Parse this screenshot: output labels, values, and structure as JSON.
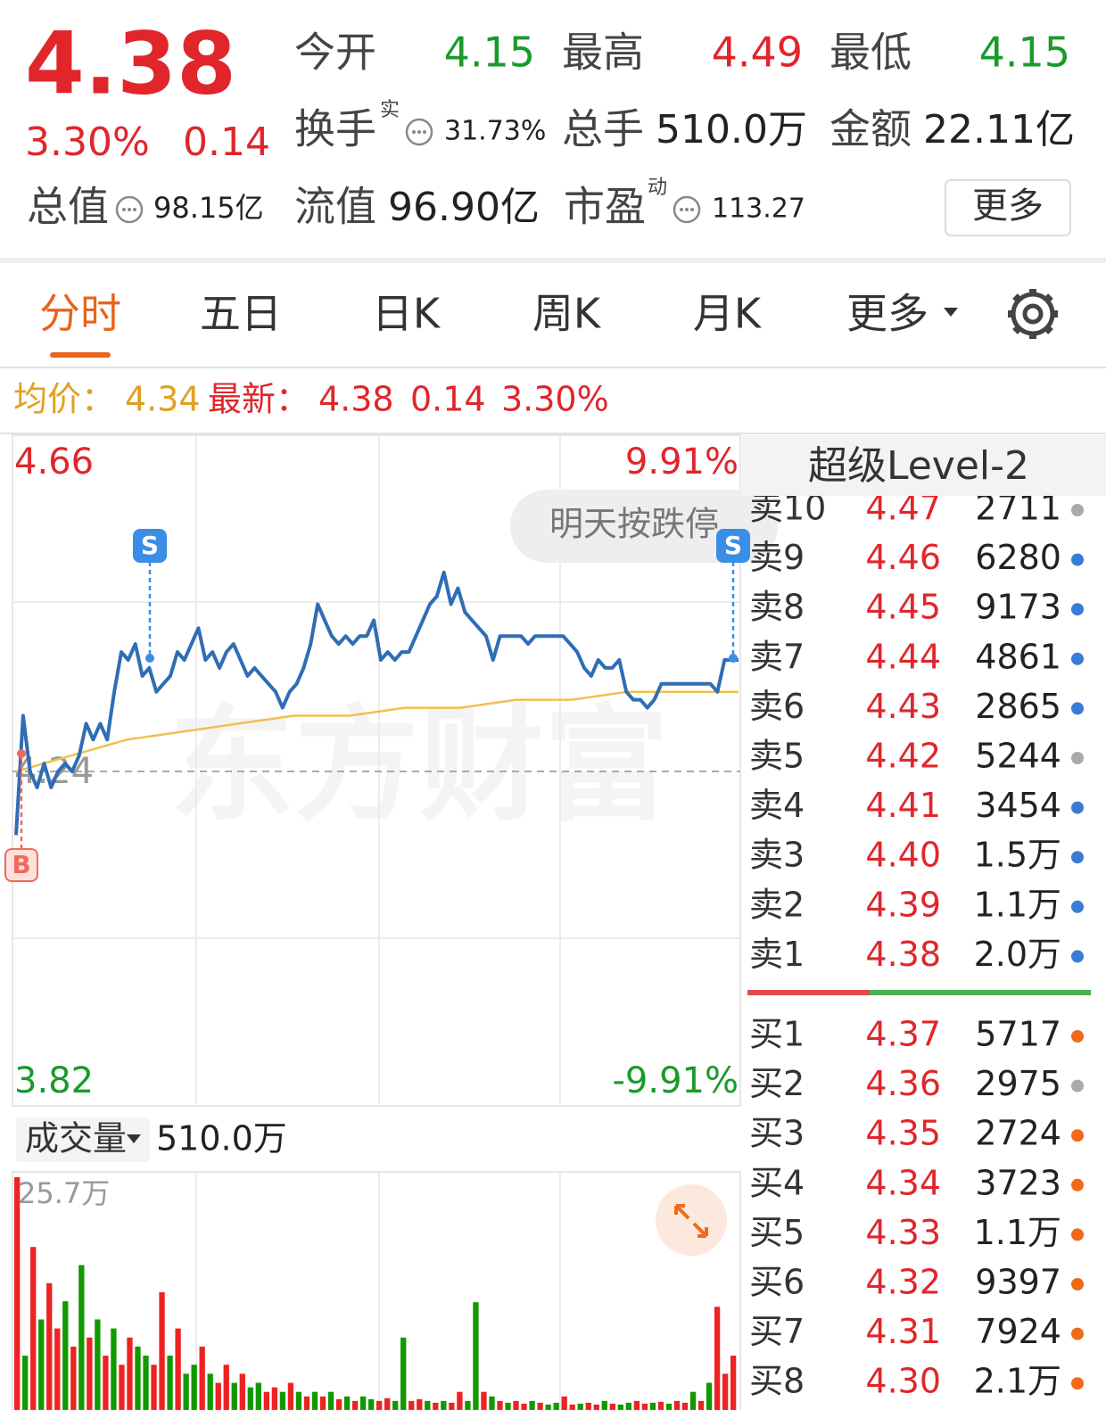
{
  "quote": {
    "price": "4.38",
    "change_pct": "3.30%",
    "change": "0.14",
    "stats": [
      {
        "label": "今开",
        "value": "4.15",
        "color": "#1a9a2a"
      },
      {
        "label": "最高",
        "value": "4.49",
        "color": "#e0262b"
      },
      {
        "label": "最低",
        "value": "4.15",
        "color": "#1a9a2a"
      },
      {
        "label": "换手",
        "sup": "实",
        "value": "31.73%",
        "color": "#222222"
      },
      {
        "label": "总手",
        "value": "510.0万",
        "color": "#222222"
      },
      {
        "label": "金额",
        "value": "22.11亿",
        "color": "#222222"
      },
      {
        "label": "总值",
        "value": "98.15亿",
        "color": "#222222"
      },
      {
        "label": "流值",
        "value": "96.90亿",
        "color": "#222222"
      },
      {
        "label": "市盈",
        "sup": "动",
        "value": "113.27",
        "color": "#222222"
      }
    ],
    "more": "更多"
  },
  "tabs": {
    "items": [
      "分时",
      "五日",
      "日K",
      "周K",
      "月K",
      "更多"
    ],
    "active": 0
  },
  "summary": {
    "avg_label": "均价：",
    "avg": "4.34",
    "last_label": "最新：",
    "last": "4.38",
    "change": "0.14",
    "change_pct": "3.30%"
  },
  "chart": {
    "type": "line",
    "ylim": [
      3.82,
      4.66
    ],
    "yticks": [
      4.66,
      4.24,
      3.82
    ],
    "pct_labels": [
      "9.91%",
      "-9.91%"
    ],
    "price": {
      "color": "#2f6db5",
      "values": [
        4.16,
        4.31,
        4.24,
        4.22,
        4.25,
        4.22,
        4.24,
        4.25,
        4.24,
        4.26,
        4.3,
        4.28,
        4.3,
        4.28,
        4.34,
        4.39,
        4.38,
        4.4,
        4.36,
        4.37,
        4.34,
        4.35,
        4.36,
        4.39,
        4.38,
        4.4,
        4.42,
        4.38,
        4.39,
        4.37,
        4.39,
        4.4,
        4.38,
        4.36,
        4.37,
        4.36,
        4.35,
        4.34,
        4.32,
        4.34,
        4.35,
        4.37,
        4.4,
        4.45,
        4.43,
        4.41,
        4.4,
        4.41,
        4.4,
        4.41,
        4.41,
        4.43,
        4.38,
        4.39,
        4.38,
        4.39,
        4.39,
        4.41,
        4.43,
        4.45,
        4.46,
        4.49,
        4.45,
        4.47,
        4.44,
        4.43,
        4.42,
        4.41,
        4.38,
        4.41,
        4.41,
        4.41,
        4.41,
        4.4,
        4.41,
        4.41,
        4.41,
        4.41,
        4.41,
        4.4,
        4.39,
        4.37,
        4.36,
        4.38,
        4.37,
        4.37,
        4.38,
        4.34,
        4.33,
        4.33,
        4.32,
        4.33,
        4.35,
        4.35,
        4.35,
        4.35,
        4.35,
        4.35,
        4.35,
        4.35,
        4.34,
        4.38,
        4.38,
        4.38
      ]
    },
    "avg": {
      "color": "#f0c050",
      "values": [
        4.24,
        4.26,
        4.28,
        4.29,
        4.3,
        4.31,
        4.31,
        4.32,
        4.32,
        4.33,
        4.33,
        4.34,
        4.34,
        4.34
      ]
    },
    "markers": [
      "S",
      "S",
      "B"
    ],
    "watermark": "东方财富",
    "notice": "明天按跌停"
  },
  "volume": {
    "type": "bar",
    "label": "成交量",
    "total": "510.0万",
    "max_label": "25.7万",
    "ylim": [
      0,
      25.7
    ],
    "values": [
      25.7,
      6,
      18,
      10,
      14,
      9,
      12,
      7,
      16,
      8,
      10,
      6,
      9,
      5,
      8,
      7,
      6,
      5,
      13,
      6,
      9,
      4,
      5,
      7,
      4,
      3,
      5,
      3,
      4,
      2.5,
      3,
      2,
      2.5,
      2,
      3,
      2,
      1.5,
      2,
      1.5,
      2,
      1.2,
      1.5,
      1,
      1.5,
      1.2,
      1,
      1.3,
      1,
      8,
      1,
      1.2,
      1,
      0.8,
      1,
      0.8,
      2,
      1,
      11.9,
      2,
      1.5,
      1,
      0.8,
      1,
      0.7,
      1,
      0.8,
      0.6,
      0.8,
      1.5,
      0.6,
      0.7,
      0.8,
      0.6,
      1,
      0.7,
      0.6,
      0.8,
      1,
      0.7,
      0.8,
      0.9,
      0.7,
      1,
      0.8,
      2,
      1,
      3,
      11.4,
      4,
      6
    ],
    "colors": [
      "#e22",
      "#190",
      "#e22",
      "#190",
      "#e22",
      "#e22",
      "#190",
      "#e22",
      "#190",
      "#e22",
      "#190",
      "#e22",
      "#190",
      "#e22",
      "#e22",
      "#190",
      "#190",
      "#e22",
      "#e22",
      "#190",
      "#e22",
      "#190",
      "#190",
      "#e22",
      "#190",
      "#e22",
      "#e22",
      "#190",
      "#e22",
      "#190",
      "#190",
      "#e22",
      "#e22",
      "#190",
      "#e22",
      "#190",
      "#e22",
      "#190",
      "#e22",
      "#190",
      "#e22",
      "#190",
      "#e22",
      "#190",
      "#190",
      "#e22",
      "#e22",
      "#190",
      "#190",
      "#e22",
      "#e22",
      "#190",
      "#e22",
      "#190",
      "#e22",
      "#e22",
      "#190",
      "#190",
      "#e22",
      "#190",
      "#e22",
      "#190",
      "#e22",
      "#e22",
      "#190",
      "#e22",
      "#190",
      "#190",
      "#e22",
      "#e22",
      "#190",
      "#e22",
      "#e22",
      "#190",
      "#e22",
      "#190",
      "#190",
      "#e22",
      "#e22",
      "#190",
      "#e22",
      "#190",
      "#e22",
      "#e22",
      "#190",
      "#e22",
      "#190",
      "#e22",
      "#e22",
      "#e22"
    ]
  },
  "level2": {
    "title": "超级Level-2",
    "asks": [
      {
        "label": "卖10",
        "price": "4.47",
        "volume": "2711",
        "dot": "#aaaaaa"
      },
      {
        "label": "卖9",
        "price": "4.46",
        "volume": "6280",
        "dot": "#3a7bd5"
      },
      {
        "label": "卖8",
        "price": "4.45",
        "volume": "9173",
        "dot": "#3a7bd5"
      },
      {
        "label": "卖7",
        "price": "4.44",
        "volume": "4861",
        "dot": "#3a7bd5"
      },
      {
        "label": "卖6",
        "price": "4.43",
        "volume": "2865",
        "dot": "#3a7bd5"
      },
      {
        "label": "卖5",
        "price": "4.42",
        "volume": "5244",
        "dot": "#aaaaaa"
      },
      {
        "label": "卖4",
        "price": "4.41",
        "volume": "3454",
        "dot": "#3a7bd5"
      },
      {
        "label": "卖3",
        "price": "4.40",
        "volume": "1.5万",
        "dot": "#3a7bd5"
      },
      {
        "label": "卖2",
        "price": "4.39",
        "volume": "1.1万",
        "dot": "#3a7bd5"
      },
      {
        "label": "卖1",
        "price": "4.38",
        "volume": "2.0万",
        "dot": "#3a7bd5"
      }
    ],
    "bids": [
      {
        "label": "买1",
        "price": "4.37",
        "volume": "5717",
        "dot": "#f06a1a"
      },
      {
        "label": "买2",
        "price": "4.36",
        "volume": "2975",
        "dot": "#aaaaaa"
      },
      {
        "label": "买3",
        "price": "4.35",
        "volume": "2724",
        "dot": "#f06a1a"
      },
      {
        "label": "买4",
        "price": "4.34",
        "volume": "3723",
        "dot": "#f06a1a"
      },
      {
        "label": "买5",
        "price": "4.33",
        "volume": "1.1万",
        "dot": "#f06a1a"
      },
      {
        "label": "买6",
        "price": "4.32",
        "volume": "9397",
        "dot": "#f06a1a"
      },
      {
        "label": "买7",
        "price": "4.31",
        "volume": "7924",
        "dot": "#f06a1a"
      },
      {
        "label": "买8",
        "price": "4.30",
        "volume": "2.1万",
        "dot": "#f06a1a"
      }
    ]
  }
}
